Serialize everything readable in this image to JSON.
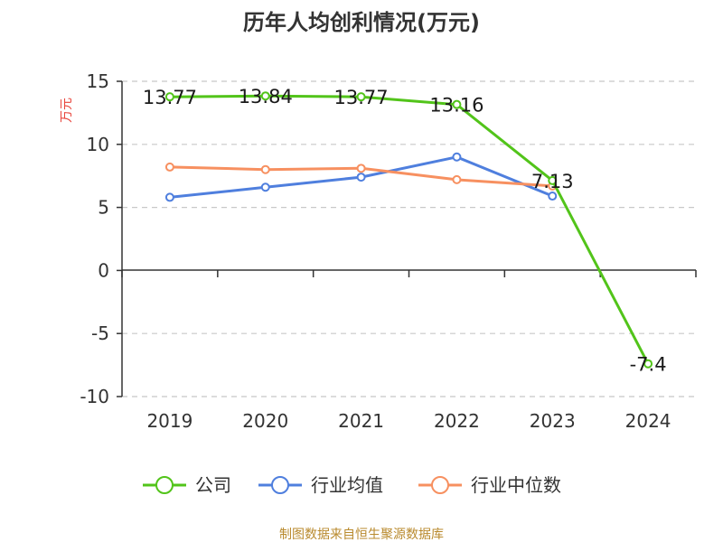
{
  "chart_data": {
    "type": "line",
    "title": "历年人均创利情况(万元)",
    "ylabel": "万元",
    "categories": [
      "2019",
      "2020",
      "2021",
      "2022",
      "2023",
      "2024"
    ],
    "ylim": [
      -10,
      15
    ],
    "yticks": [
      15,
      10,
      5,
      0,
      -5,
      -10
    ],
    "grid": true,
    "legend_position": "bottom",
    "series": [
      {
        "name": "公司",
        "color": "#52c41a",
        "values": [
          13.77,
          13.84,
          13.77,
          13.16,
          7.13,
          -7.4
        ],
        "labels": [
          "13.77",
          "13.84",
          "13.77",
          "13.16",
          "7.13",
          "-7.4"
        ]
      },
      {
        "name": "行业均值",
        "color": "#4f7fde",
        "values": [
          5.8,
          6.6,
          7.4,
          9.0,
          5.9,
          null
        ]
      },
      {
        "name": "行业中位数",
        "color": "#f79060",
        "values": [
          8.2,
          8.0,
          8.1,
          7.2,
          6.7,
          null
        ]
      }
    ]
  },
  "source": "制图数据来自恒生聚源数据库"
}
